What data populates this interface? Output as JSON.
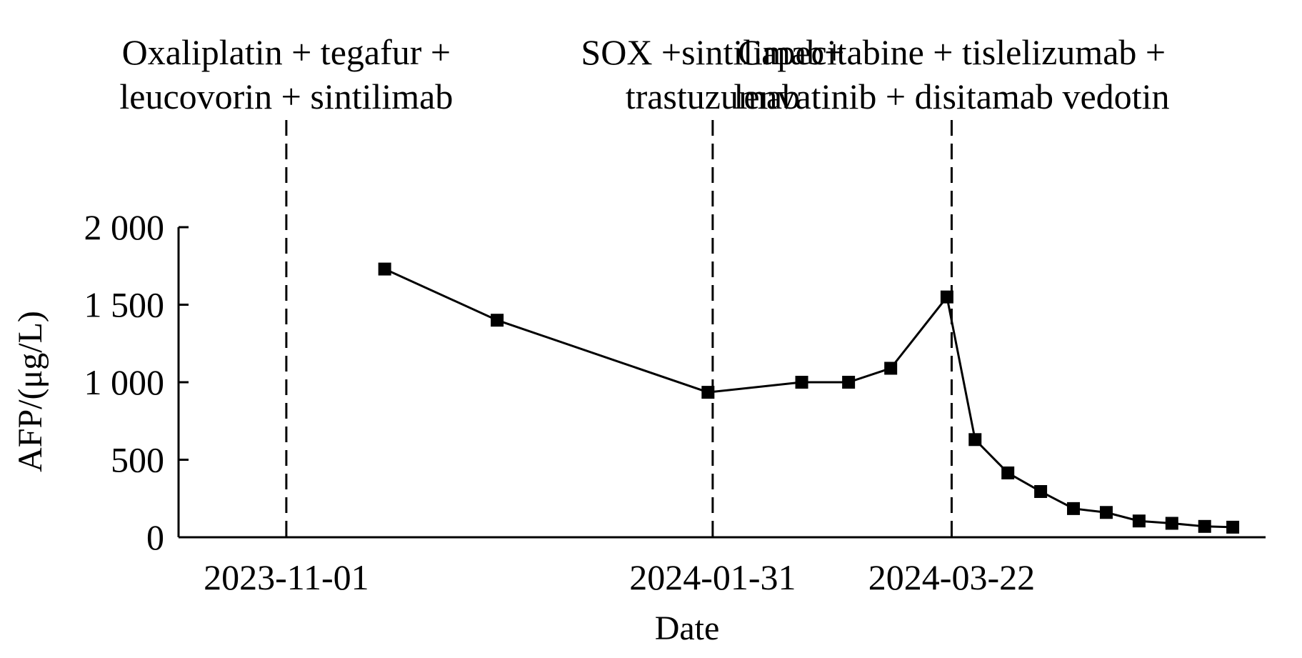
{
  "chart_data": {
    "type": "line",
    "xlabel": "Date",
    "ylabel": "AFP/(μg/L)",
    "ylim": [
      0,
      2000
    ],
    "y_ticks": [
      {
        "value": 0,
        "label": "0"
      },
      {
        "value": 500,
        "label": "500"
      },
      {
        "value": 1000,
        "label": "1 000"
      },
      {
        "value": 1500,
        "label": "1 500"
      },
      {
        "value": 2000,
        "label": "2 000"
      }
    ],
    "x_range": [
      "2023-10-09",
      "2024-05-28"
    ],
    "x_ticks": [
      "2023-11-01",
      "2024-01-31",
      "2024-03-22"
    ],
    "series": [
      {
        "marker": "square",
        "color": "#000000",
        "points": [
          {
            "x": "2023-11-22",
            "y": 1730
          },
          {
            "x": "2023-12-16",
            "y": 1400
          },
          {
            "x": "2024-01-30",
            "y": 935
          },
          {
            "x": "2024-02-19",
            "y": 1000
          },
          {
            "x": "2024-02-29",
            "y": 1000
          },
          {
            "x": "2024-03-09",
            "y": 1090
          },
          {
            "x": "2024-03-21",
            "y": 1550
          },
          {
            "x": "2024-03-27",
            "y": 630
          },
          {
            "x": "2024-04-03",
            "y": 415
          },
          {
            "x": "2024-04-10",
            "y": 295
          },
          {
            "x": "2024-04-17",
            "y": 185
          },
          {
            "x": "2024-04-24",
            "y": 160
          },
          {
            "x": "2024-05-01",
            "y": 105
          },
          {
            "x": "2024-05-08",
            "y": 90
          },
          {
            "x": "2024-05-15",
            "y": 70
          },
          {
            "x": "2024-05-21",
            "y": 65
          }
        ]
      }
    ],
    "treatment_markers": [
      {
        "x": "2023-11-01",
        "lines": [
          "Oxaliplatin + tegafur +",
          "leucovorin + sintilimab"
        ]
      },
      {
        "x": "2024-01-31",
        "lines": [
          "SOX +sintilimab+",
          "trastuzumab"
        ]
      },
      {
        "x": "2024-03-22",
        "lines": [
          "Capecitabine + tislelizumab +",
          "lenvatinib + disitamab vedotin"
        ]
      }
    ],
    "grid": false,
    "legend": "none"
  }
}
